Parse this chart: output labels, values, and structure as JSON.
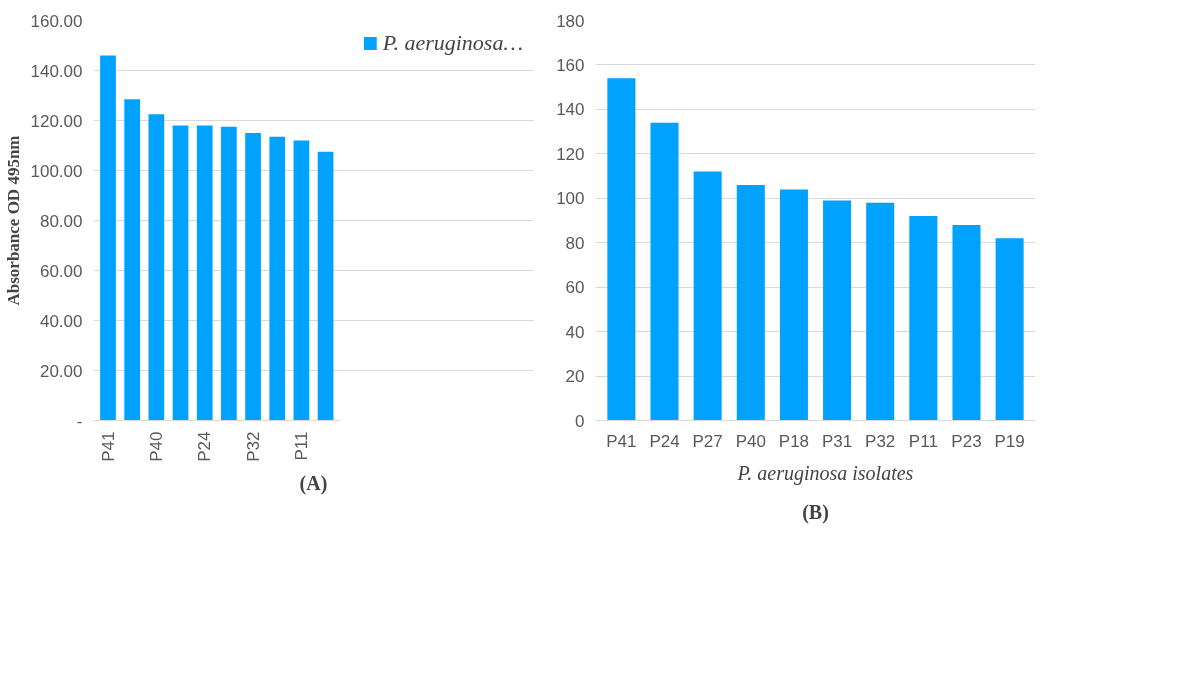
{
  "chart_data": [
    {
      "type": "bar",
      "ylabel": "Absorbance OD 495nm",
      "categories": [
        "P41",
        null,
        "P40",
        null,
        "P24",
        null,
        "P32",
        null,
        "P11",
        null
      ],
      "series": [
        {
          "name": "P. aeruginosa…",
          "color": "#00a2ff",
          "values": [
            146,
            128.5,
            122.5,
            118,
            118,
            117.5,
            115,
            113.5,
            112,
            107.5
          ]
        }
      ],
      "ylim": [
        0,
        160
      ],
      "yticks": [
        {
          "value": 0,
          "label": "-"
        },
        {
          "value": 20,
          "label": "20.00"
        },
        {
          "value": 40,
          "label": "40.00"
        },
        {
          "value": 60,
          "label": "60.00"
        },
        {
          "value": 80,
          "label": "80.00"
        },
        {
          "value": 100,
          "label": "100.00"
        },
        {
          "value": 120,
          "label": "120.00"
        },
        {
          "value": 140,
          "label": "140.00"
        },
        {
          "value": 160,
          "label": "160.00"
        }
      ],
      "grid": "y",
      "legend": "right",
      "annotations": [
        "(A)"
      ]
    },
    {
      "type": "bar",
      "categories": [
        "P41",
        "P24",
        "P27",
        "P40",
        "P18",
        "P31",
        "P32",
        "P11",
        "P23",
        "P19"
      ],
      "series": [
        {
          "name": "P. aeruginosa isolates",
          "color": "#00a2ff",
          "values": [
            154,
            134,
            112,
            106,
            104,
            99,
            98,
            92,
            88,
            82
          ]
        }
      ],
      "ylim": [
        0,
        180
      ],
      "yticks": [
        0,
        20,
        40,
        60,
        80,
        100,
        120,
        140,
        160,
        180
      ],
      "grid": "y",
      "legend": "bottom",
      "annotations": [
        "(B)"
      ]
    }
  ]
}
